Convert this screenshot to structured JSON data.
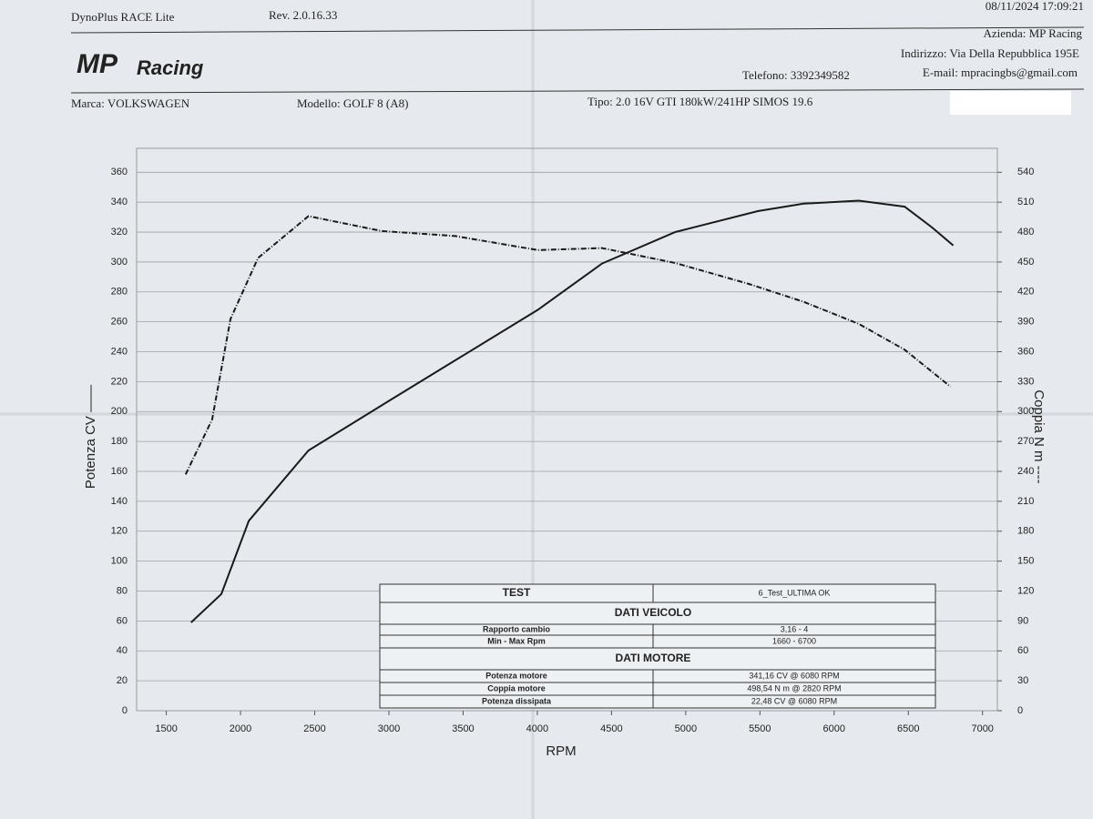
{
  "header": {
    "software": "DynoPlus RACE Lite",
    "revision": "Rev. 2.0.16.33",
    "datetime": "08/11/2024 17:09:21",
    "logo_mp": "MP",
    "logo_racing": "Racing",
    "company": "Azienda: MP Racing",
    "address": "Indirizzo: Via Della Repubblica 195E",
    "phone": "Telefono: 3392349582",
    "email": "E-mail: mpracingbs@gmail.com",
    "make": "Marca: VOLKSWAGEN",
    "model": "Modello: GOLF 8 (A8)",
    "engine": "Tipo: 2.0 16V GTI 180kW/241HP SIMOS 19.6"
  },
  "chart_data": {
    "type": "line",
    "x_label": "RPM",
    "y_label": "Potenza CV ——",
    "y2_label": "Coppia N m ----",
    "xlim": [
      1300,
      7100
    ],
    "xticks": [
      1500,
      2000,
      2500,
      3000,
      3500,
      4000,
      4500,
      5000,
      5500,
      6000,
      6500,
      7000
    ],
    "ylim": [
      0,
      376
    ],
    "yticks": [
      0,
      20,
      40,
      60,
      80,
      100,
      120,
      140,
      160,
      180,
      200,
      220,
      240,
      260,
      280,
      300,
      320,
      340,
      360
    ],
    "y2lim": [
      0,
      564
    ],
    "y2ticks": [
      0,
      30,
      60,
      90,
      120,
      150,
      180,
      210,
      240,
      270,
      300,
      330,
      360,
      390,
      420,
      450,
      480,
      510,
      540
    ],
    "grid": true,
    "series": [
      {
        "name": "Potenza",
        "color": "#1a1a1a",
        "x": [
          1667,
          1871,
          2056,
          2458,
          3014,
          3509,
          4003,
          4436,
          4930,
          5486,
          5795,
          6166,
          6475,
          6661,
          6803
        ],
        "values": [
          59,
          78,
          127,
          174,
          208,
          238,
          268,
          299,
          320,
          334,
          339,
          341,
          337,
          323,
          311
        ]
      },
      {
        "name": "Coppia",
        "color": "#1a1a1a",
        "axis": "y2",
        "dashed": true,
        "x": [
          1630,
          1809,
          1933,
          2118,
          2458,
          2952,
          3447,
          4003,
          4436,
          4930,
          5425,
          5795,
          6166,
          6475,
          6784
        ],
        "values": [
          237,
          292,
          393,
          454,
          496,
          481,
          476,
          462,
          464,
          449,
          428,
          410,
          388,
          362,
          325
        ]
      }
    ]
  },
  "table": {
    "rows": [
      [
        "TEST",
        "6_Test_ULTIMA OK"
      ],
      [
        "DATI VEICOLO"
      ],
      [
        "Rapporto cambio",
        "3,16 - 4"
      ],
      [
        "Min - Max Rpm",
        "1660 - 6700"
      ],
      [
        "DATI MOTORE"
      ],
      [
        "Potenza motore",
        "341,16 CV @ 6080 RPM"
      ],
      [
        "Coppia motore",
        "498,54 N m @ 2820 RPM"
      ],
      [
        "Potenza dissipata",
        "22,48 CV @ 6080 RPM"
      ]
    ]
  }
}
